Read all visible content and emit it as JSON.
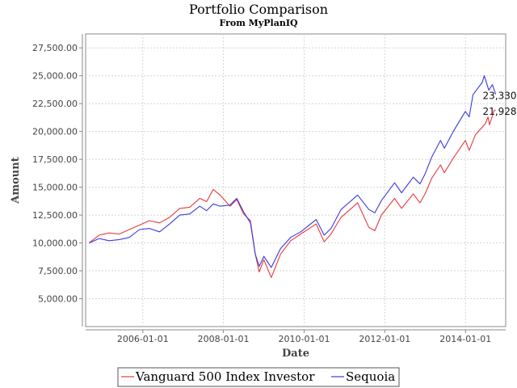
{
  "chart_data": {
    "type": "line",
    "title": "Portfolio Comparison",
    "subtitle": "From MyPlanIQ",
    "xlabel": "Date",
    "ylabel": "Amount",
    "xlim": [
      "2004-08-01",
      "2014-12-31"
    ],
    "ylim": [
      2500,
      28750
    ],
    "x_ticks": [
      "2006-01-01",
      "2008-01-01",
      "2010-01-01",
      "2012-01-01",
      "2014-01-01"
    ],
    "y_ticks": [
      5000,
      7500,
      10000,
      12500,
      15000,
      17500,
      20000,
      22500,
      25000,
      27500
    ],
    "y_tick_labels": [
      "5,000.00",
      "7,500.00",
      "10,000.00",
      "12,500.00",
      "15,000.00",
      "17,500.00",
      "20,000.00",
      "22,500.00",
      "25,000.00",
      "27,500.00"
    ],
    "grid": true,
    "legend_position": "bottom",
    "series": [
      {
        "name": "Vanguard 500 Index Investor",
        "color": "#e8393d",
        "end_label": "21,928",
        "points": [
          [
            "2004-09-01",
            10000
          ],
          [
            "2004-12-01",
            10700
          ],
          [
            "2005-03-01",
            10900
          ],
          [
            "2005-06-01",
            10800
          ],
          [
            "2005-09-01",
            11200
          ],
          [
            "2005-12-01",
            11600
          ],
          [
            "2006-03-01",
            12000
          ],
          [
            "2006-06-01",
            11800
          ],
          [
            "2006-09-01",
            12300
          ],
          [
            "2006-12-01",
            13100
          ],
          [
            "2007-03-01",
            13200
          ],
          [
            "2007-06-01",
            14000
          ],
          [
            "2007-08-01",
            13700
          ],
          [
            "2007-10-01",
            14800
          ],
          [
            "2007-12-01",
            14300
          ],
          [
            "2008-03-01",
            13300
          ],
          [
            "2008-05-01",
            13900
          ],
          [
            "2008-07-01",
            12600
          ],
          [
            "2008-09-01",
            12000
          ],
          [
            "2008-10-15",
            9000
          ],
          [
            "2008-11-20",
            7400
          ],
          [
            "2009-01-01",
            8500
          ],
          [
            "2009-03-09",
            6900
          ],
          [
            "2009-06-01",
            9000
          ],
          [
            "2009-09-01",
            10200
          ],
          [
            "2009-12-01",
            10800
          ],
          [
            "2010-04-20",
            11700
          ],
          [
            "2010-07-01",
            10100
          ],
          [
            "2010-09-01",
            10800
          ],
          [
            "2010-12-01",
            12300
          ],
          [
            "2011-04-30",
            13600
          ],
          [
            "2011-08-10",
            11400
          ],
          [
            "2011-10-03",
            11100
          ],
          [
            "2011-12-01",
            12500
          ],
          [
            "2012-03-30",
            14000
          ],
          [
            "2012-06-01",
            13100
          ],
          [
            "2012-09-15",
            14400
          ],
          [
            "2012-11-15",
            13600
          ],
          [
            "2012-12-31",
            14400
          ],
          [
            "2013-03-01",
            15800
          ],
          [
            "2013-05-20",
            17000
          ],
          [
            "2013-06-24",
            16300
          ],
          [
            "2013-09-18",
            17700
          ],
          [
            "2013-12-31",
            19200
          ],
          [
            "2014-02-03",
            18300
          ],
          [
            "2014-04-01",
            19700
          ],
          [
            "2014-06-30",
            20700
          ],
          [
            "2014-07-24",
            21300
          ],
          [
            "2014-08-07",
            20600
          ],
          [
            "2014-09-18",
            21900
          ],
          [
            "2014-10-01",
            21928
          ]
        ]
      },
      {
        "name": "Sequoia",
        "color": "#3a3ae0",
        "end_label": "23,330",
        "points": [
          [
            "2004-09-01",
            10000
          ],
          [
            "2004-12-01",
            10400
          ],
          [
            "2005-03-01",
            10200
          ],
          [
            "2005-06-01",
            10300
          ],
          [
            "2005-09-01",
            10500
          ],
          [
            "2005-12-01",
            11200
          ],
          [
            "2006-03-01",
            11300
          ],
          [
            "2006-06-01",
            11000
          ],
          [
            "2006-09-01",
            11700
          ],
          [
            "2006-12-01",
            12500
          ],
          [
            "2007-03-01",
            12600
          ],
          [
            "2007-06-01",
            13300
          ],
          [
            "2007-08-01",
            12900
          ],
          [
            "2007-10-01",
            13500
          ],
          [
            "2007-12-01",
            13300
          ],
          [
            "2008-03-01",
            13400
          ],
          [
            "2008-05-01",
            14000
          ],
          [
            "2008-07-01",
            12800
          ],
          [
            "2008-09-01",
            11800
          ],
          [
            "2008-10-15",
            9000
          ],
          [
            "2008-11-20",
            7900
          ],
          [
            "2009-01-01",
            8800
          ],
          [
            "2009-03-09",
            7800
          ],
          [
            "2009-06-01",
            9500
          ],
          [
            "2009-09-01",
            10500
          ],
          [
            "2009-12-01",
            11000
          ],
          [
            "2010-04-20",
            12100
          ],
          [
            "2010-07-01",
            10700
          ],
          [
            "2010-09-01",
            11300
          ],
          [
            "2010-12-01",
            13000
          ],
          [
            "2011-04-30",
            14300
          ],
          [
            "2011-08-10",
            13000
          ],
          [
            "2011-10-03",
            12700
          ],
          [
            "2011-12-01",
            13800
          ],
          [
            "2012-03-30",
            15400
          ],
          [
            "2012-06-01",
            14500
          ],
          [
            "2012-09-15",
            15900
          ],
          [
            "2012-11-15",
            15300
          ],
          [
            "2012-12-31",
            16200
          ],
          [
            "2013-03-01",
            17700
          ],
          [
            "2013-05-20",
            19200
          ],
          [
            "2013-06-24",
            18500
          ],
          [
            "2013-09-18",
            20100
          ],
          [
            "2013-12-31",
            21800
          ],
          [
            "2014-02-03",
            21300
          ],
          [
            "2014-03-10",
            23300
          ],
          [
            "2014-06-01",
            24400
          ],
          [
            "2014-06-20",
            25000
          ],
          [
            "2014-07-31",
            23700
          ],
          [
            "2014-09-01",
            24200
          ],
          [
            "2014-10-01",
            23330
          ]
        ]
      }
    ]
  }
}
